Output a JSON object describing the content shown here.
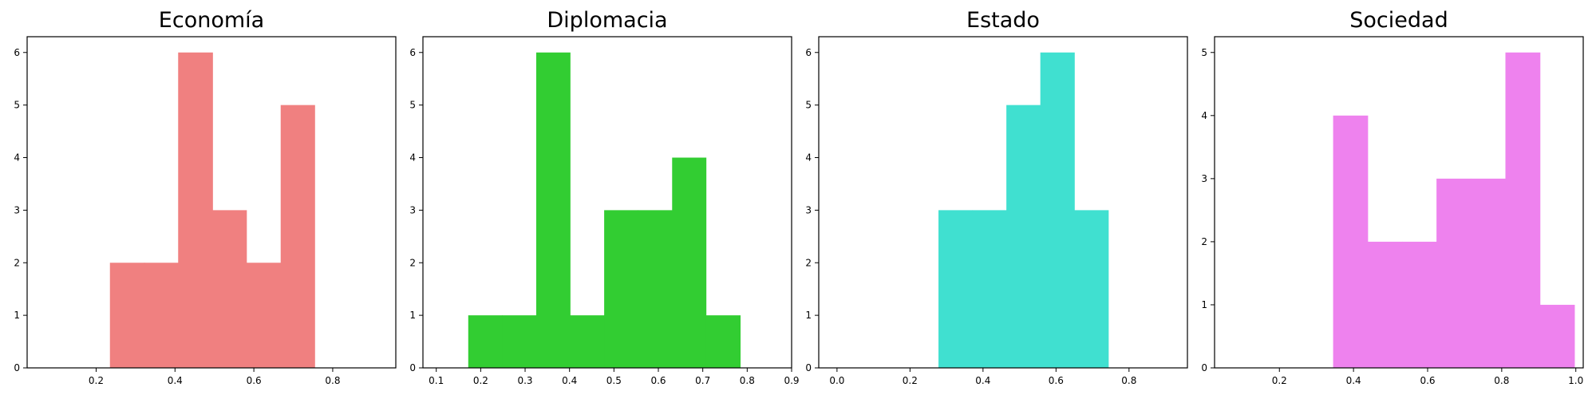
{
  "chart_data": [
    {
      "type": "bar",
      "title": "Economía",
      "color": "#F08080",
      "xlim": [
        0.025,
        0.96
      ],
      "ylim": [
        0,
        6.3
      ],
      "xticks": [
        0.2,
        0.4,
        0.6,
        0.8
      ],
      "xtick_labels": [
        "0.2",
        "0.4",
        "0.6",
        "0.8"
      ],
      "yticks": [
        0,
        1,
        2,
        3,
        4,
        5,
        6
      ],
      "ytick_labels": [
        "0",
        "1",
        "2",
        "3",
        "4",
        "5",
        "6"
      ],
      "bins": [
        {
          "x0": 0.235,
          "x1": 0.322,
          "value": 2
        },
        {
          "x0": 0.322,
          "x1": 0.408,
          "value": 2
        },
        {
          "x0": 0.408,
          "x1": 0.495,
          "value": 6
        },
        {
          "x0": 0.495,
          "x1": 0.581,
          "value": 3
        },
        {
          "x0": 0.581,
          "x1": 0.668,
          "value": 2
        },
        {
          "x0": 0.668,
          "x1": 0.754,
          "value": 5
        }
      ]
    },
    {
      "type": "bar",
      "title": "Diplomacia",
      "color": "#32CD32",
      "xlim": [
        0.07,
        0.9
      ],
      "ylim": [
        0,
        6.3
      ],
      "xticks": [
        0.1,
        0.2,
        0.3,
        0.4,
        0.5,
        0.6,
        0.7,
        0.8,
        0.9
      ],
      "xtick_labels": [
        "0.1",
        "0.2",
        "0.3",
        "0.4",
        "0.5",
        "0.6",
        "0.7",
        "0.8",
        "0.9"
      ],
      "yticks": [
        0,
        1,
        2,
        3,
        4,
        5,
        6
      ],
      "ytick_labels": [
        "0",
        "1",
        "2",
        "3",
        "4",
        "5",
        "6"
      ],
      "bins": [
        {
          "x0": 0.172,
          "x1": 0.248,
          "value": 1
        },
        {
          "x0": 0.248,
          "x1": 0.325,
          "value": 1
        },
        {
          "x0": 0.325,
          "x1": 0.401,
          "value": 6
        },
        {
          "x0": 0.401,
          "x1": 0.478,
          "value": 1
        },
        {
          "x0": 0.478,
          "x1": 0.554,
          "value": 3
        },
        {
          "x0": 0.554,
          "x1": 0.631,
          "value": 3
        },
        {
          "x0": 0.631,
          "x1": 0.707,
          "value": 4
        },
        {
          "x0": 0.707,
          "x1": 0.784,
          "value": 1
        }
      ]
    },
    {
      "type": "bar",
      "title": "Estado",
      "color": "#40E0D0",
      "xlim": [
        -0.05,
        0.96
      ],
      "ylim": [
        0,
        6.3
      ],
      "xticks": [
        0.0,
        0.2,
        0.4,
        0.6,
        0.8
      ],
      "xtick_labels": [
        "0.0",
        "0.2",
        "0.4",
        "0.6",
        "0.8"
      ],
      "yticks": [
        0,
        1,
        2,
        3,
        4,
        5,
        6
      ],
      "ytick_labels": [
        "0",
        "1",
        "2",
        "3",
        "4",
        "5",
        "6"
      ],
      "bins": [
        {
          "x0": 0.278,
          "x1": 0.371,
          "value": 3
        },
        {
          "x0": 0.371,
          "x1": 0.464,
          "value": 3
        },
        {
          "x0": 0.464,
          "x1": 0.557,
          "value": 5
        },
        {
          "x0": 0.557,
          "x1": 0.65,
          "value": 6
        },
        {
          "x0": 0.65,
          "x1": 0.743,
          "value": 3
        }
      ]
    },
    {
      "type": "bar",
      "title": "Sociedad",
      "color": "#EE82EE",
      "xlim": [
        0.025,
        1.02
      ],
      "ylim": [
        0,
        5.25
      ],
      "xticks": [
        0.2,
        0.4,
        0.6,
        0.8,
        1.0
      ],
      "xtick_labels": [
        "0.2",
        "0.4",
        "0.6",
        "0.8",
        "1.0"
      ],
      "yticks": [
        0,
        1,
        2,
        3,
        4,
        5
      ],
      "ytick_labels": [
        "0",
        "1",
        "2",
        "3",
        "4",
        "5"
      ],
      "bins": [
        {
          "x0": 0.345,
          "x1": 0.438,
          "value": 4
        },
        {
          "x0": 0.438,
          "x1": 0.531,
          "value": 2
        },
        {
          "x0": 0.531,
          "x1": 0.624,
          "value": 2
        },
        {
          "x0": 0.624,
          "x1": 0.717,
          "value": 3
        },
        {
          "x0": 0.717,
          "x1": 0.81,
          "value": 3
        },
        {
          "x0": 0.81,
          "x1": 0.903,
          "value": 5
        },
        {
          "x0": 0.903,
          "x1": 0.996,
          "value": 1
        }
      ]
    }
  ]
}
